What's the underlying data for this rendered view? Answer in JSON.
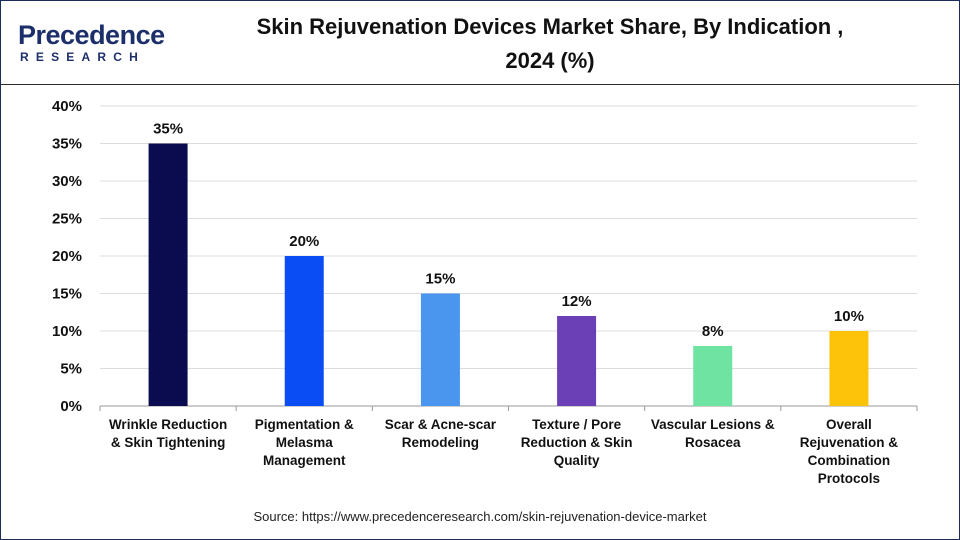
{
  "brand": {
    "name_line1": "Precedence",
    "name_line2": "RESEARCH",
    "color": "#1c2f6b"
  },
  "header": {
    "title": "Skin Rejuvenation Devices Market Share, By Indication ,\n2024 (%)"
  },
  "footer": {
    "source": "Source: https://www.precedenceresearch.com/skin-rejuvenation-device-market"
  },
  "chart_data": {
    "type": "bar",
    "title": "Skin Rejuvenation Devices Market Share, By Indication , 2024 (%)",
    "xlabel": "",
    "ylabel": "",
    "ylim": [
      0,
      40
    ],
    "yticks": [
      "0%",
      "5%",
      "10%",
      "15%",
      "20%",
      "25%",
      "30%",
      "35%",
      "40%"
    ],
    "grid": true,
    "legend": "none",
    "categories": [
      "Wrinkle Reduction & Skin Tightening",
      "Pigmentation & Melasma Management",
      "Scar & Acne-scar Remodeling",
      "Texture / Pore Reduction & Skin Quality",
      "Vascular Lesions & Rosacea",
      "Overall Rejuvenation & Combination Protocols"
    ],
    "category_lines": [
      [
        "Wrinkle Reduction",
        "& Skin Tightening"
      ],
      [
        "Pigmentation &",
        "Melasma",
        "Management"
      ],
      [
        "Scar & Acne-scar",
        "Remodeling"
      ],
      [
        "Texture / Pore",
        "Reduction & Skin",
        "Quality"
      ],
      [
        "Vascular Lesions &",
        "Rosacea"
      ],
      [
        "Overall",
        "Rejuvenation &",
        "Combination",
        "Protocols"
      ]
    ],
    "values": [
      35,
      20,
      15,
      12,
      8,
      10
    ],
    "data_labels": [
      "35%",
      "20%",
      "15%",
      "12%",
      "8%",
      "10%"
    ],
    "colors": [
      "#0b0b4f",
      "#0a4df5",
      "#4a95ee",
      "#6b3fb5",
      "#6ee3a2",
      "#fdc20a"
    ]
  }
}
